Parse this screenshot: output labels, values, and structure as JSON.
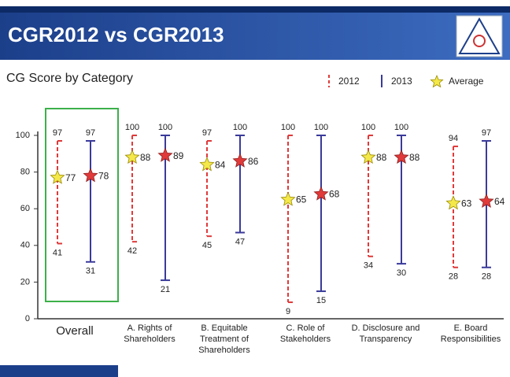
{
  "header": {
    "title": "CGR2012 vs CGR2013"
  },
  "chart_data": {
    "type": "range",
    "title": "CG Score by Category",
    "categories": [
      "Overall",
      "A. Rights of Shareholders",
      "B. Equitable Treatment of Shareholders",
      "C. Role of Stakeholders",
      "D. Disclosure and Transparency",
      "E. Board Responsibilities"
    ],
    "series": [
      {
        "name": "2012",
        "color": "#e03a3a",
        "dashed": true,
        "average_color": "#f4e84a",
        "max": [
          97,
          100,
          97,
          100,
          100,
          94
        ],
        "min": [
          41,
          42,
          45,
          9,
          34,
          28
        ],
        "average": [
          77,
          88,
          84,
          65,
          88,
          63
        ]
      },
      {
        "name": "2013",
        "color": "#3a3a9a",
        "dashed": false,
        "average_color": "#e03a3a",
        "max": [
          97,
          100,
          100,
          100,
          100,
          97
        ],
        "min": [
          31,
          21,
          47,
          15,
          30,
          28
        ],
        "average": [
          78,
          89,
          86,
          68,
          88,
          64
        ]
      }
    ],
    "average_label": "Average",
    "ylim": [
      0,
      100
    ],
    "yticks": [
      0,
      20,
      40,
      60,
      80,
      100
    ],
    "highlight_color": "#3cb04a"
  }
}
